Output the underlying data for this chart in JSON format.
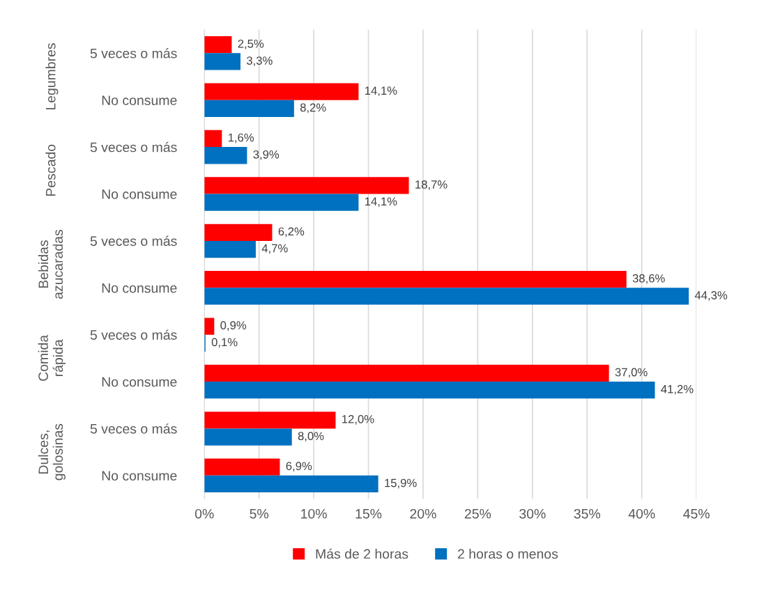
{
  "chart_data": {
    "type": "bar",
    "orientation": "horizontal",
    "categories": [
      "5 veces o más",
      "No consume",
      "5 veces o más",
      "No consume",
      "5 veces o más",
      "No consume",
      "5 veces o más",
      "No consume",
      "5 veces o más",
      "No consume"
    ],
    "series": [
      {
        "name": "Más de 2 horas",
        "color": "#ff0000",
        "values": [
          2.5,
          14.1,
          1.6,
          18.7,
          6.2,
          38.6,
          0.9,
          37.0,
          12.0,
          6.9
        ],
        "value_labels": [
          "2,5%",
          "14,1%",
          "1,6%",
          "18,7%",
          "6,2%",
          "38,6%",
          "0,9%",
          "37,0%",
          "12,0%",
          "6,9%"
        ]
      },
      {
        "name": "2 horas o menos",
        "color": "#0070c0",
        "values": [
          3.3,
          8.2,
          3.9,
          14.1,
          4.7,
          44.3,
          0.1,
          41.2,
          8.0,
          15.9
        ],
        "value_labels": [
          "3,3%",
          "8,2%",
          "3,9%",
          "14,1%",
          "4,7%",
          "44,3%",
          "0,1%",
          "41,2%",
          "8,0%",
          "15,9%"
        ]
      }
    ],
    "annotations": [
      "Legumbres",
      "Pescado",
      "Bebidas\nazucaradas",
      "Comida\nrápida",
      "Dulces,\ngolosinas"
    ],
    "xlim": [
      0,
      45
    ],
    "xticks": [
      {
        "value": 0,
        "label": "0%"
      },
      {
        "value": 5,
        "label": "5%"
      },
      {
        "value": 10,
        "label": "10%"
      },
      {
        "value": 15,
        "label": "15%"
      },
      {
        "value": 20,
        "label": "20%"
      },
      {
        "value": 25,
        "label": "25%"
      },
      {
        "value": 30,
        "label": "30%"
      },
      {
        "value": 35,
        "label": "35%"
      },
      {
        "value": 40,
        "label": "40%"
      },
      {
        "value": 45,
        "label": "45%"
      }
    ],
    "grid": "x",
    "legend": "bottom"
  }
}
